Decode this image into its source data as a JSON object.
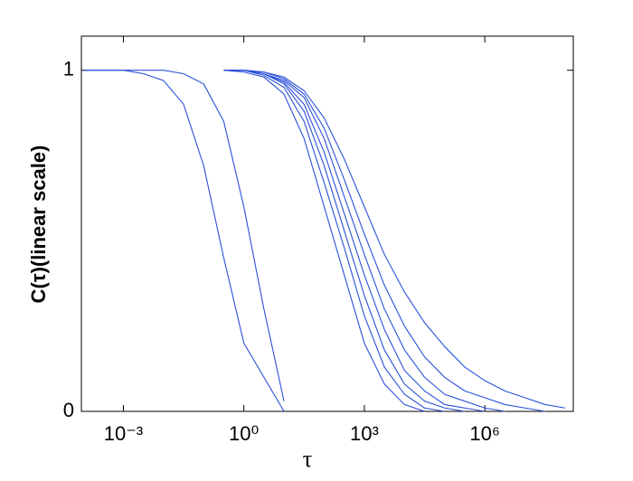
{
  "chart_data": {
    "type": "line",
    "x_label": "τ",
    "y_label": "C(τ)(linear scale)",
    "x_scale": "log",
    "xlim": [
      9e-05,
      160000000
    ],
    "ylim": [
      0,
      1.1
    ],
    "xticks": [
      {
        "value": 0.001,
        "label": "10⁻³"
      },
      {
        "value": 1,
        "label": "10⁰"
      },
      {
        "value": 1000,
        "label": "10³"
      },
      {
        "value": 1000000,
        "label": "10⁶"
      }
    ],
    "yticks": [
      0,
      1
    ],
    "grid": false,
    "x": [
      0.0001,
      0.000316,
      0.001,
      0.00316,
      0.01,
      0.0316,
      0.1,
      0.316,
      1,
      3.16,
      10,
      31.6,
      100,
      316,
      1000,
      3162,
      10000,
      31623,
      100000,
      316228,
      1000000,
      3162278,
      10000000,
      31622777,
      100000000
    ],
    "series": [
      {
        "color": "#2a4fd8",
        "values": [
          1,
          1,
          1,
          0.99,
          0.97,
          0.9,
          0.72,
          0.45,
          0.2,
          0.1,
          0,
          null,
          null,
          null,
          null,
          null,
          null,
          null,
          null,
          null,
          null,
          null,
          null,
          null,
          null
        ]
      },
      {
        "color": "#2a4fd8",
        "values": [
          1,
          1,
          1,
          1,
          1,
          0.99,
          0.96,
          0.85,
          0.6,
          0.3,
          0.03,
          null,
          null,
          null,
          null,
          null,
          null,
          null,
          null,
          null,
          null,
          null,
          null,
          null,
          null
        ]
      },
      {
        "color": "#2a4fd8",
        "values": [
          null,
          null,
          null,
          null,
          null,
          null,
          null,
          1,
          0.995,
          0.98,
          0.93,
          0.8,
          0.6,
          0.4,
          0.2,
          0.08,
          0.02,
          0,
          null,
          null,
          null,
          null,
          null,
          null,
          null
        ]
      },
      {
        "color": "#2a4fd8",
        "values": [
          null,
          null,
          null,
          null,
          null,
          null,
          null,
          1,
          1,
          0.985,
          0.95,
          0.85,
          0.67,
          0.48,
          0.28,
          0.13,
          0.05,
          0.01,
          0,
          null,
          null,
          null,
          null,
          null,
          null
        ]
      },
      {
        "color": "#2a4fd8",
        "values": [
          null,
          null,
          null,
          null,
          null,
          null,
          null,
          1,
          1,
          0.99,
          0.96,
          0.88,
          0.72,
          0.53,
          0.34,
          0.18,
          0.08,
          0.03,
          0.01,
          0,
          null,
          null,
          null,
          null,
          null
        ]
      },
      {
        "color": "#2a4fd8",
        "values": [
          null,
          null,
          null,
          null,
          null,
          null,
          null,
          1,
          1,
          0.99,
          0.965,
          0.9,
          0.76,
          0.58,
          0.4,
          0.24,
          0.12,
          0.06,
          0.02,
          0.01,
          0,
          null,
          null,
          null,
          null
        ]
      },
      {
        "color": "#2a4fd8",
        "values": [
          null,
          null,
          null,
          null,
          null,
          null,
          null,
          1,
          1,
          0.99,
          0.97,
          0.92,
          0.8,
          0.63,
          0.46,
          0.3,
          0.18,
          0.1,
          0.05,
          0.03,
          0.01,
          0,
          null,
          null,
          null
        ]
      },
      {
        "color": "#2a4fd8",
        "values": [
          null,
          null,
          null,
          null,
          null,
          null,
          null,
          1,
          1,
          0.995,
          0.975,
          0.93,
          0.83,
          0.68,
          0.52,
          0.37,
          0.25,
          0.16,
          0.1,
          0.06,
          0.04,
          0.02,
          0.01,
          0,
          null
        ]
      },
      {
        "color": "#2a4fd8",
        "values": [
          null,
          null,
          null,
          null,
          null,
          null,
          null,
          1,
          1,
          0.995,
          0.98,
          0.94,
          0.86,
          0.74,
          0.6,
          0.46,
          0.35,
          0.26,
          0.19,
          0.13,
          0.09,
          0.06,
          0.04,
          0.02,
          0.01
        ]
      }
    ]
  }
}
